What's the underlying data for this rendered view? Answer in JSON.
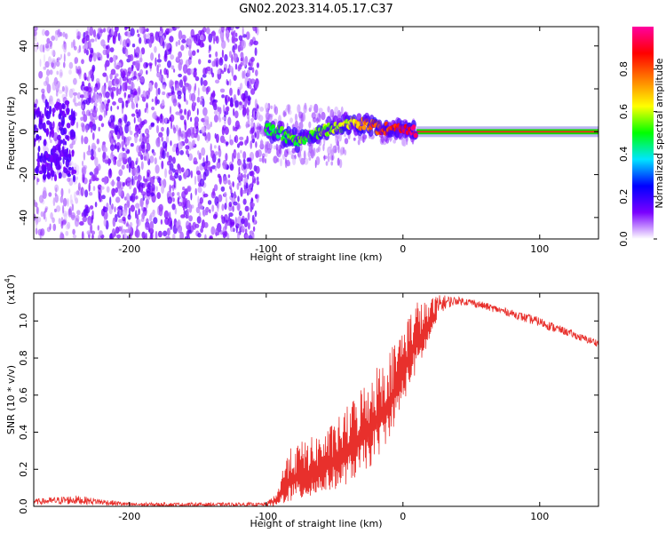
{
  "title": "GN02.2023.314.05.17.C37",
  "chart_data": [
    {
      "type": "heatmap",
      "name": "spectrogram",
      "xlabel": "Height of straight line (km)",
      "ylabel": "Frequency (Hz)",
      "xlim": [
        -270,
        143
      ],
      "ylim": [
        -50,
        49
      ],
      "xticks": [
        -200,
        -100,
        0,
        100
      ],
      "xtick_labels": [
        "-200",
        "-100",
        "0",
        "100"
      ],
      "yticks": [
        -40,
        -20,
        0,
        20,
        40
      ],
      "ytick_labels": [
        "-40",
        "-20",
        "0",
        "20",
        "40"
      ],
      "regions": [
        {
          "x": [
            -270,
            -235
          ],
          "desc": "sparse light purple noise with dense blue cluster near 0 Hz"
        },
        {
          "x": [
            -235,
            -105
          ],
          "desc": "dense purple noise across all frequencies"
        },
        {
          "x": [
            -105,
            10
          ],
          "desc": "signal trace near 0 Hz rising in amplitude"
        },
        {
          "x": [
            10,
            143
          ],
          "desc": "strong red carrier line at 0 Hz"
        }
      ],
      "trace_points": [
        {
          "x": -100,
          "y": 2,
          "amp": 0.45
        },
        {
          "x": -90,
          "y": 0,
          "amp": 0.5
        },
        {
          "x": -80,
          "y": -4,
          "amp": 0.52
        },
        {
          "x": -70,
          "y": -2,
          "amp": 0.5
        },
        {
          "x": -60,
          "y": 0,
          "amp": 0.55
        },
        {
          "x": -50,
          "y": 2,
          "amp": 0.58
        },
        {
          "x": -40,
          "y": 4,
          "amp": 0.62
        },
        {
          "x": -30,
          "y": 4,
          "amp": 0.72
        },
        {
          "x": -20,
          "y": 2,
          "amp": 0.8
        },
        {
          "x": -10,
          "y": 1,
          "amp": 0.85
        },
        {
          "x": 0,
          "y": 1,
          "amp": 0.9
        },
        {
          "x": 10,
          "y": 0,
          "amp": 0.95
        },
        {
          "x": 140,
          "y": 0,
          "amp": 0.97
        }
      ],
      "colorbar": {
        "label": "Normalized spectral amplitude",
        "range": [
          0,
          1
        ],
        "ticks": [
          0.0,
          0.2,
          0.4,
          0.6,
          0.8
        ],
        "tick_labels": [
          "0.0",
          "0.2",
          "0.4",
          "0.6",
          "0.8"
        ],
        "colors": [
          "#ffffff",
          "#7a00ff",
          "#0000ff",
          "#00e5ff",
          "#00ff00",
          "#ffff00",
          "#ff8000",
          "#ff0000",
          "#ff00a0"
        ]
      }
    },
    {
      "type": "line",
      "name": "snr",
      "xlabel": "Height of straight line (km)",
      "ylabel": "SNR (10 * v/v)",
      "scale_label": "(x10",
      "scale_exp": "4",
      "scale_close": ")",
      "xlim": [
        -270,
        143
      ],
      "ylim": [
        0,
        1.15
      ],
      "xticks": [
        -200,
        -100,
        0,
        100
      ],
      "xtick_labels": [
        "-200",
        "-100",
        "0",
        "100"
      ],
      "yticks": [
        0.0,
        0.2,
        0.4,
        0.6,
        0.8,
        1.0
      ],
      "ytick_labels": [
        "0.0",
        "0.2",
        "0.4",
        "0.6",
        "0.8",
        "1.0"
      ],
      "color": "#e8302c",
      "envelope": {
        "x": [
          -270,
          -240,
          -230,
          -200,
          -150,
          -100,
          -92,
          -85,
          -75,
          -65,
          -55,
          -45,
          -35,
          -25,
          -15,
          -5,
          0,
          5,
          10,
          15,
          20,
          25,
          30,
          40,
          50,
          60,
          70,
          80,
          90,
          100,
          110,
          120,
          130,
          143
        ],
        "low": [
          0.01,
          0.01,
          0.01,
          0.0,
          0.0,
          0.0,
          0.0,
          0.02,
          0.03,
          0.05,
          0.08,
          0.1,
          0.15,
          0.2,
          0.3,
          0.45,
          0.55,
          0.65,
          0.72,
          0.8,
          0.9,
          1.0,
          1.06,
          1.09,
          1.08,
          1.06,
          1.04,
          1.02,
          0.99,
          0.97,
          0.94,
          0.92,
          0.89,
          0.86
        ],
        "high": [
          0.04,
          0.06,
          0.05,
          0.02,
          0.02,
          0.02,
          0.08,
          0.3,
          0.35,
          0.38,
          0.42,
          0.5,
          0.6,
          0.72,
          0.8,
          0.9,
          1.0,
          1.05,
          1.12,
          1.1,
          1.12,
          1.14,
          1.14,
          1.13,
          1.12,
          1.1,
          1.08,
          1.06,
          1.04,
          1.02,
          0.99,
          0.96,
          0.93,
          0.9
        ]
      }
    }
  ]
}
